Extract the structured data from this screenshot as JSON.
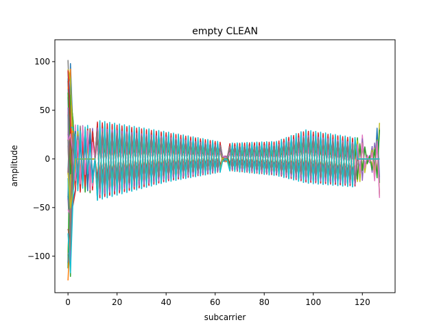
{
  "chart_data": {
    "type": "line",
    "title": "empty CLEAN",
    "xlabel": "subcarrier",
    "ylabel": "amplitude",
    "xlim": [
      -5.35,
      133.35
    ],
    "ylim": [
      -137.5,
      122.5
    ],
    "xticks": [
      0,
      20,
      40,
      60,
      80,
      100,
      120
    ],
    "yticks": [
      -100,
      -50,
      0,
      50,
      100
    ],
    "xtick_labels": [
      "0",
      "20",
      "40",
      "60",
      "80",
      "100",
      "120"
    ],
    "ytick_labels": [
      "−100",
      "−50",
      "0",
      "50",
      "100"
    ],
    "grid": false,
    "legend": "none",
    "x": "subcarrier index 0–127",
    "series_count": 40,
    "series_envelope": {
      "start_values": [
        110,
        108,
        105,
        80,
        60,
        40,
        20,
        -20,
        -60,
        -100,
        -125,
        -122
      ],
      "guard_band_low": [
        3,
        11
      ],
      "guard_band_high": [
        118,
        127
      ],
      "null_subcarriers": [
        63,
        64,
        65
      ],
      "upper_envelope": [
        [
          12,
          40
        ],
        [
          40,
          28
        ],
        [
          63,
          17
        ],
        [
          66,
          16
        ],
        [
          85,
          18
        ],
        [
          97,
          30
        ],
        [
          117,
          22
        ]
      ],
      "lower_envelope": [
        [
          12,
          -44
        ],
        [
          40,
          -25
        ],
        [
          63,
          -14
        ],
        [
          66,
          -13
        ],
        [
          85,
          -18
        ],
        [
          97,
          -26
        ],
        [
          117,
          -30
        ]
      ],
      "tail_extreme": [
        [
          120,
          25
        ],
        [
          127,
          -43
        ]
      ]
    },
    "colors": [
      "#1f77b4",
      "#ff7f0e",
      "#2ca02c",
      "#d62728",
      "#9467bd",
      "#8c564b",
      "#e377c2",
      "#7f7f7f",
      "#bcbd22",
      "#17becf"
    ]
  }
}
